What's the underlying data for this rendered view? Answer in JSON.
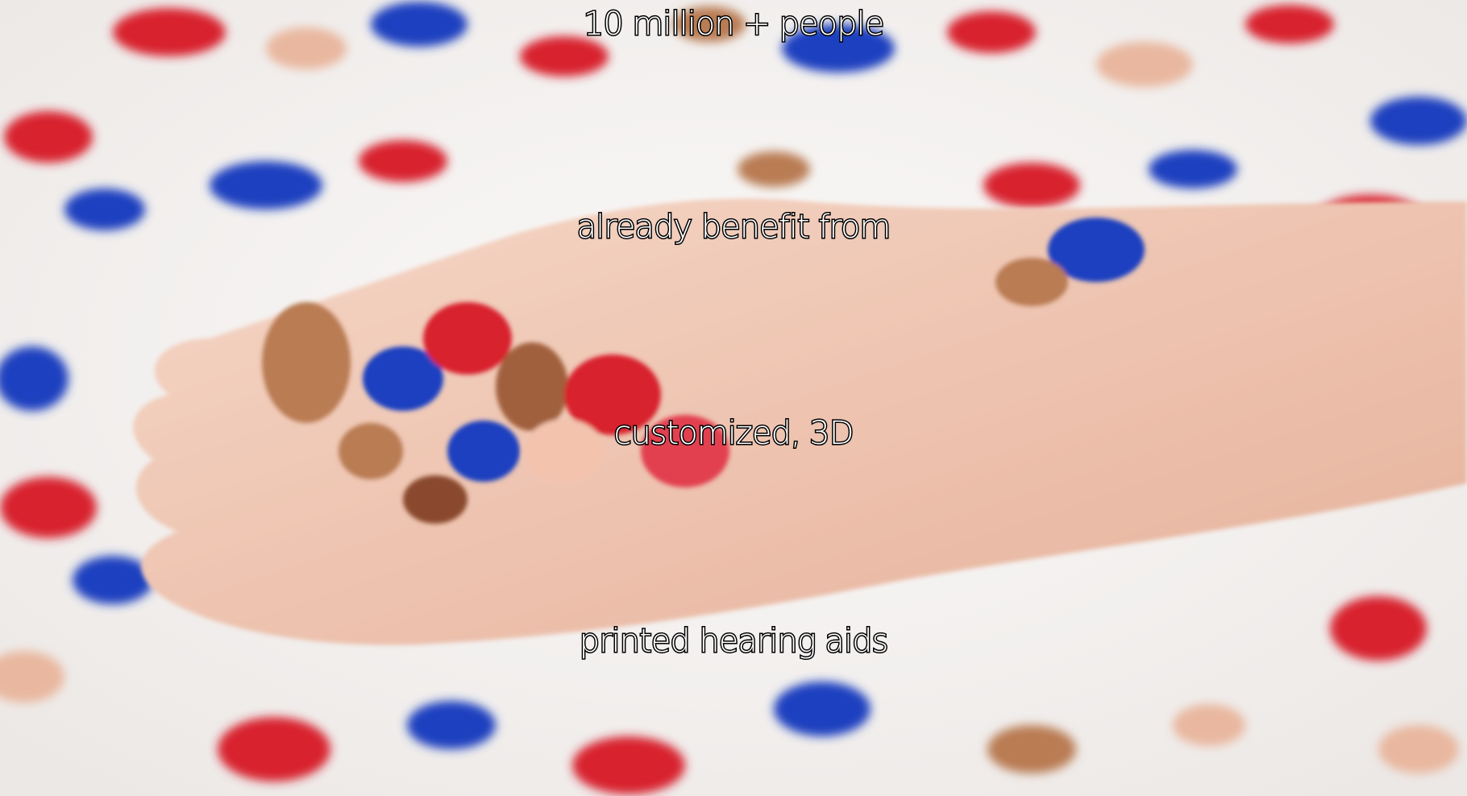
{
  "caption": {
    "lines": [
      "10 million + people",
      "already benefit from",
      "customized, 3D",
      "printed hearing aids"
    ]
  },
  "photo": {
    "subject": "open hand holding colorful hearing aid shells",
    "colors": {
      "background": "#f7f5f4",
      "skin": "#f2c9b4",
      "red": "#d8232f",
      "blue": "#1f3fbf",
      "tan": "#b97c52"
    }
  }
}
